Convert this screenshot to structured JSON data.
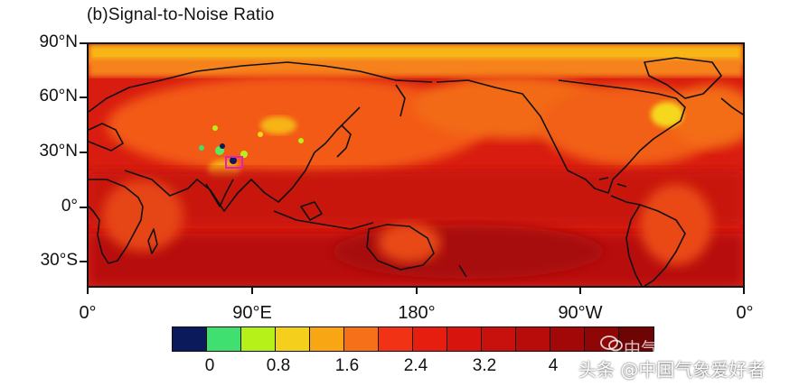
{
  "figure": {
    "title": "(b)Signal-to-Noise Ratio"
  },
  "axes": {
    "lat_labels": [
      "90°N",
      "60°N",
      "30°N",
      "0°",
      "30°S"
    ],
    "lon_labels": [
      "0°",
      "90°E",
      "180°",
      "90°W",
      "0°"
    ]
  },
  "colorbar": {
    "colors": [
      "#0b1a5a",
      "#3fe070",
      "#b6f21a",
      "#f4d01c",
      "#f8a614",
      "#f6701a",
      "#f23214",
      "#e61e10",
      "#d8140e",
      "#c8100c",
      "#b80c0a",
      "#a20808",
      "#8e0606",
      "#6e0404"
    ],
    "tick_labels": [
      "0",
      "0.8",
      "1.6",
      "2.4",
      "3.2",
      "4"
    ]
  },
  "watermark": {
    "line1": "中气爱科技新知",
    "line2": "头条 @中国气象爱好者"
  },
  "chart_data": {
    "type": "heatmap",
    "title": "(b)Signal-to-Noise Ratio",
    "projection": "cylindrical equidistant, centered on 180°",
    "lon_range": [
      0,
      360
    ],
    "lat_range": [
      -45,
      90
    ],
    "lat_ticks": [
      "90°N",
      "60°N",
      "30°N",
      "0°",
      "30°S"
    ],
    "lon_ticks": [
      "0°",
      "90°E",
      "180°",
      "90°W",
      "0°"
    ],
    "colorbar_ticks": [
      0,
      0.8,
      1.6,
      2.4,
      3.2,
      4
    ],
    "colorbar_interval": 0.4,
    "highlight_box": "magenta rectangle near 80°E, 27°N"
  }
}
